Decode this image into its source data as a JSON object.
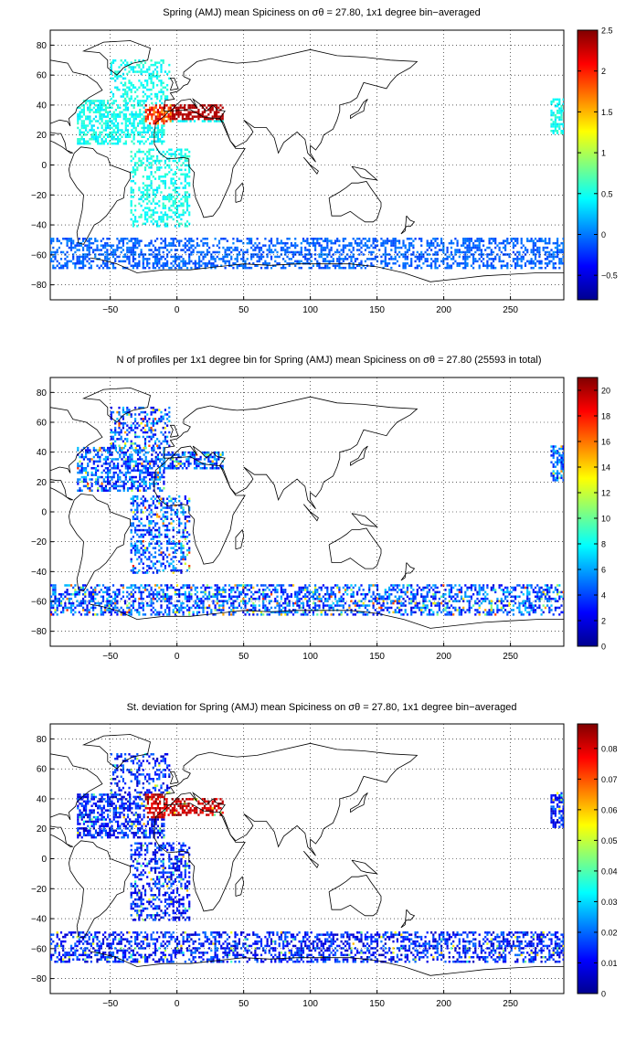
{
  "figure": {
    "panels": [
      {
        "id": "mean",
        "title": "Spring (AMJ) mean Spiciness on σθ = 27.80, 1x1 degree bin−averaged",
        "x_ticks": [
          "−50",
          "0",
          "50",
          "100",
          "150",
          "200",
          "250"
        ],
        "y_ticks": [
          "80",
          "60",
          "40",
          "20",
          "0",
          "−20",
          "−40",
          "−60",
          "−80"
        ],
        "colorbar_ticks": [
          "2.5",
          "2",
          "1.5",
          "1",
          "0.5",
          "0",
          "−0.5"
        ],
        "colorbar_range": [
          -0.8,
          2.5
        ],
        "colormap": "jet"
      },
      {
        "id": "count",
        "title": "N of profiles per 1x1 degree bin for Spring (AMJ) mean Spiciness on σθ = 27.80 (25593 in total)",
        "x_ticks": [
          "−50",
          "0",
          "50",
          "100",
          "150",
          "200",
          "250"
        ],
        "y_ticks": [
          "80",
          "60",
          "40",
          "20",
          "0",
          "−20",
          "−40",
          "−60",
          "−80"
        ],
        "colorbar_ticks": [
          "20",
          "18",
          "16",
          "14",
          "12",
          "10",
          "8",
          "6",
          "4",
          "2",
          "0"
        ],
        "colorbar_range": [
          0,
          21
        ],
        "colormap": "jet"
      },
      {
        "id": "std",
        "title": "St. deviation for Spring (AMJ) mean Spiciness on σθ = 27.80, 1x1 degree bin−averaged",
        "x_ticks": [
          "−50",
          "0",
          "50",
          "100",
          "150",
          "200",
          "250"
        ],
        "y_ticks": [
          "80",
          "60",
          "40",
          "20",
          "0",
          "−20",
          "−40",
          "−60",
          "−80"
        ],
        "colorbar_ticks": [
          "0.08",
          "0.07",
          "0.06",
          "0.05",
          "0.04",
          "0.03",
          "0.02",
          "0.01",
          "0"
        ],
        "colorbar_range": [
          0,
          0.088
        ],
        "colormap": "jet"
      }
    ]
  },
  "map": {
    "lon_range": [
      -95,
      290
    ],
    "lat_range": [
      -90,
      90
    ],
    "grid": "dotted",
    "coastline_color": "#000000"
  }
}
